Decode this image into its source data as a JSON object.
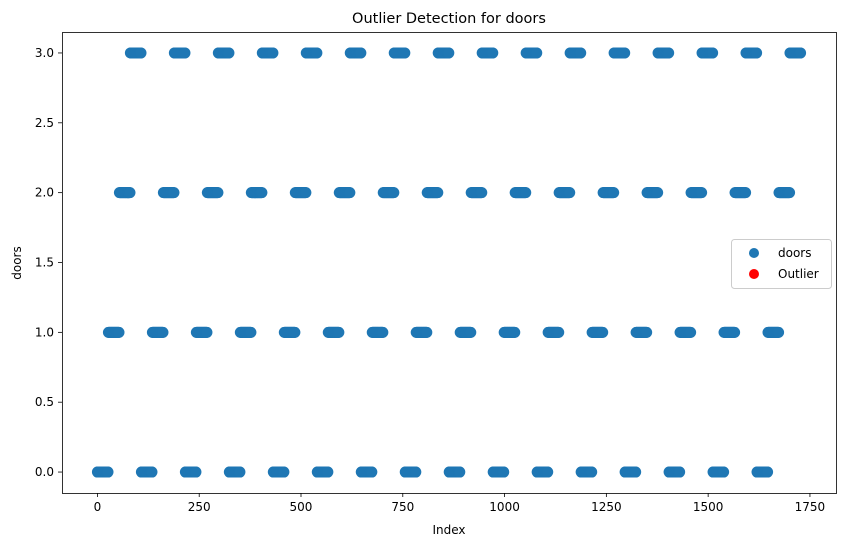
{
  "chart_data": {
    "type": "scatter",
    "title": "Outlier Detection for doors",
    "xlabel": "Index",
    "ylabel": "doors",
    "xlim": [
      -87,
      1814
    ],
    "ylim": [
      -0.15,
      3.15
    ],
    "xticks": [
      0,
      250,
      500,
      750,
      1000,
      1250,
      1500,
      1750
    ],
    "xtick_labels": [
      "0",
      "250",
      "500",
      "750",
      "1000",
      "1250",
      "1500",
      "1750"
    ],
    "yticks": [
      0.0,
      0.5,
      1.0,
      1.5,
      2.0,
      2.5,
      3.0
    ],
    "ytick_labels": [
      "0.0",
      "0.5",
      "1.0",
      "1.5",
      "2.0",
      "2.5",
      "3.0"
    ],
    "grid": false,
    "legend_position": "center-right",
    "series": [
      {
        "name": "doors",
        "color": "#1f77b4",
        "pattern": "index-ordered, value cycles through 0,1,2,3 in consecutive blocks",
        "segments": [
          {
            "y": 0,
            "x_ranges": [
              [
                0,
                27
              ],
              [
                108,
                135
              ],
              [
                216,
                243
              ],
              [
                324,
                351
              ],
              [
                432,
                459
              ],
              [
                540,
                567
              ],
              [
                648,
                675
              ],
              [
                756,
                783
              ],
              [
                864,
                891
              ],
              [
                972,
                999
              ],
              [
                1080,
                1107
              ],
              [
                1188,
                1215
              ],
              [
                1296,
                1323
              ],
              [
                1404,
                1431
              ],
              [
                1512,
                1539
              ],
              [
                1620,
                1647
              ]
            ]
          },
          {
            "y": 1,
            "x_ranges": [
              [
                27,
                54
              ],
              [
                135,
                162
              ],
              [
                243,
                270
              ],
              [
                351,
                378
              ],
              [
                459,
                486
              ],
              [
                567,
                594
              ],
              [
                675,
                702
              ],
              [
                783,
                810
              ],
              [
                891,
                918
              ],
              [
                999,
                1026
              ],
              [
                1107,
                1134
              ],
              [
                1215,
                1242
              ],
              [
                1323,
                1350
              ],
              [
                1431,
                1458
              ],
              [
                1539,
                1566
              ],
              [
                1647,
                1674
              ]
            ]
          },
          {
            "y": 2,
            "x_ranges": [
              [
                54,
                81
              ],
              [
                162,
                189
              ],
              [
                270,
                297
              ],
              [
                378,
                405
              ],
              [
                486,
                513
              ],
              [
                594,
                621
              ],
              [
                702,
                729
              ],
              [
                810,
                837
              ],
              [
                918,
                945
              ],
              [
                1026,
                1053
              ],
              [
                1134,
                1161
              ],
              [
                1242,
                1269
              ],
              [
                1350,
                1377
              ],
              [
                1458,
                1485
              ],
              [
                1566,
                1593
              ],
              [
                1674,
                1701
              ]
            ]
          },
          {
            "y": 3,
            "x_ranges": [
              [
                81,
                108
              ],
              [
                189,
                216
              ],
              [
                297,
                324
              ],
              [
                405,
                432
              ],
              [
                513,
                540
              ],
              [
                621,
                648
              ],
              [
                729,
                756
              ],
              [
                837,
                864
              ],
              [
                945,
                972
              ],
              [
                1053,
                1080
              ],
              [
                1161,
                1188
              ],
              [
                1269,
                1296
              ],
              [
                1377,
                1404
              ],
              [
                1485,
                1512
              ],
              [
                1593,
                1620
              ],
              [
                1701,
                1728
              ]
            ]
          }
        ]
      },
      {
        "name": "Outlier",
        "color": "#ff0000",
        "points": []
      }
    ]
  }
}
